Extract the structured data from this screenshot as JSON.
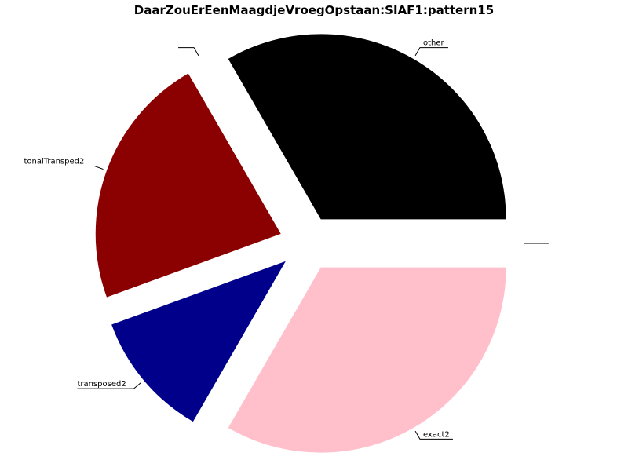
{
  "chart_data": {
    "type": "pie",
    "title": "DaarZouErEenMaagdjeVroegOpstaan:SIAF1:pattern15",
    "start_angle_deg": 0,
    "direction": "counterclockwise",
    "exploded": true,
    "slices": [
      {
        "label": "",
        "value": 0,
        "color": "#ffffff"
      },
      {
        "label": "other",
        "value": 33.333,
        "color": "#000000"
      },
      {
        "label": "",
        "value": 0,
        "color": "#ffffff"
      },
      {
        "label": "tonalTransped2",
        "value": 22.222,
        "color": "#8b0000"
      },
      {
        "label": "transposed2",
        "value": 11.111,
        "color": "#00008b"
      },
      {
        "label": "exact2",
        "value": 33.333,
        "color": "#ffc0cb"
      }
    ]
  }
}
